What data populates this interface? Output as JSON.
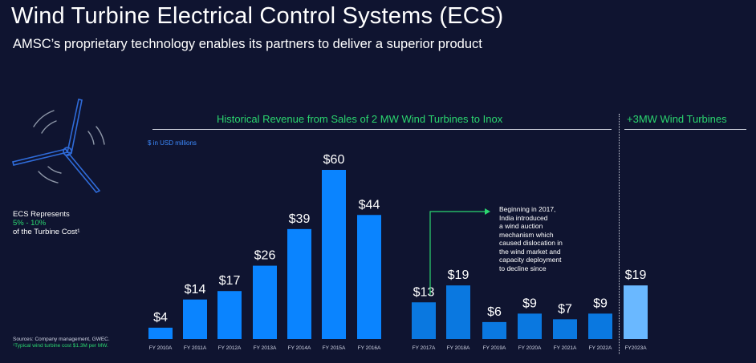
{
  "header": {
    "title": "Wind Turbine Electrical Control Systems (ECS)",
    "subtitle": "AMSC’s proprietary technology enables its partners to deliver a superior product"
  },
  "left_note": {
    "line1": "ECS Represents",
    "line2": "5% - 10%",
    "line3": "of the Turbine Cost¹"
  },
  "sources": {
    "line1": "Sources: Company management, GWEC.",
    "line2": "¹Typical wind turbine cost $1.3M per MW."
  },
  "sections": {
    "historical": "Historical Revenue from Sales of 2 MW Wind Turbines to Inox",
    "future": "+3MW Wind Turbines"
  },
  "unit_label": "$ in USD millions",
  "annotation": {
    "lines": [
      "Beginning in 2017,",
      "India introduced",
      "a wind auction",
      "mechanism which",
      "caused dislocation in",
      "the wind market and",
      "capacity deployment",
      "to decline since"
    ]
  },
  "colors": {
    "background": "#0f1430",
    "bar_primary": "#0a84ff",
    "bar_post2017": "#0a78e0",
    "bar_future": "#6ab8ff",
    "accent_green": "#2bd66f"
  },
  "chart_data": {
    "type": "bar",
    "ylabel": "$ in USD millions",
    "ylim": [
      0,
      60
    ],
    "grid": false,
    "categories": [
      "FY 2010A",
      "FY 2011A",
      "FY 2012A",
      "FY 2013A",
      "FY 2014A",
      "FY 2015A",
      "FY 2016A",
      "FY 2017A",
      "FY 2018A",
      "FY 2019A",
      "FY 2020A",
      "FY 2021A",
      "FY 2022A",
      "FY2023A"
    ],
    "values": [
      4,
      14,
      17,
      26,
      39,
      60,
      44,
      13,
      19,
      6,
      9,
      7,
      9,
      19
    ],
    "data_labels": [
      "$4",
      "$14",
      "$17",
      "$26",
      "$39",
      "$60",
      "$44",
      "$13",
      "$19",
      "$6",
      "$9",
      "$7",
      "$9",
      "$19"
    ],
    "groups": [
      {
        "name": "Historical Revenue from Sales of 2 MW Wind Turbines to Inox",
        "range": [
          0,
          12
        ]
      },
      {
        "name": "+3MW Wind Turbines",
        "range": [
          13,
          13
        ]
      }
    ]
  }
}
